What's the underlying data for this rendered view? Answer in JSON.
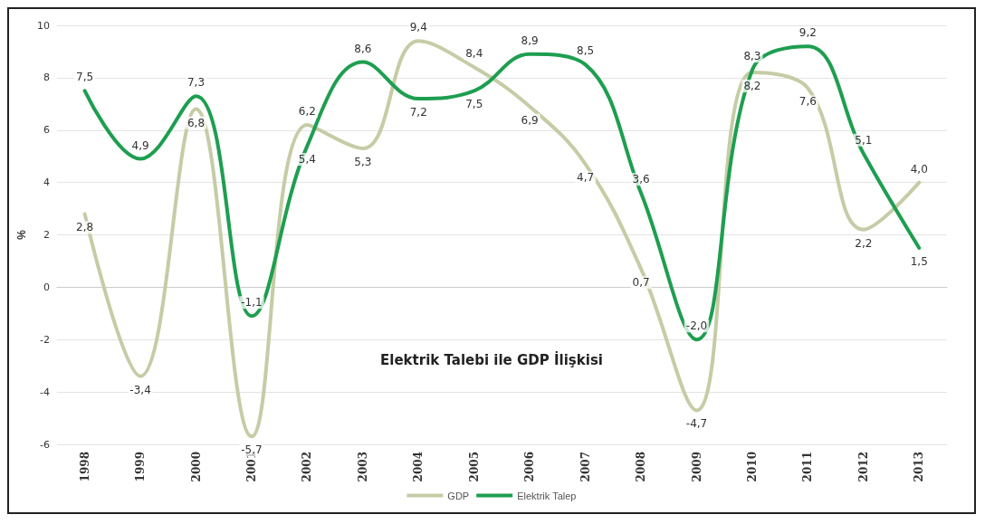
{
  "chart_data": {
    "type": "line",
    "title": "Elektrik Talebi ile GDP İlişkisi",
    "ylabel": "%",
    "categories": [
      "1998",
      "1999",
      "2000",
      "2001",
      "2002",
      "2003",
      "2004",
      "2005",
      "2006",
      "2007",
      "2008",
      "2009",
      "2010",
      "2011",
      "2012",
      "2013"
    ],
    "series": [
      {
        "name": "GDP",
        "color": "#c5cca6",
        "values": [
          2.8,
          -3.4,
          6.8,
          -5.7,
          6.2,
          5.3,
          9.4,
          8.4,
          6.9,
          4.7,
          0.7,
          -4.7,
          8.2,
          7.6,
          2.2,
          4.0
        ],
        "value_labels": [
          "2,8",
          "-3,4",
          "6,8",
          "-5,7",
          "6,2",
          "5,3",
          "9,4",
          "8,4",
          "6,9",
          "4,7",
          "0,7",
          "-4,7",
          "8,2",
          "7,6",
          "2,2",
          "4,0"
        ]
      },
      {
        "name": "Elektrik Talep",
        "color": "#1e9e50",
        "values": [
          7.5,
          4.9,
          7.3,
          -1.1,
          5.4,
          8.6,
          7.2,
          7.5,
          8.9,
          8.5,
          3.6,
          -2.0,
          8.3,
          9.2,
          5.1,
          1.5
        ],
        "value_labels": [
          "7,5",
          "4,9",
          "7,3",
          "-1,1",
          "5,4",
          "8,6",
          "7,2",
          "7,5",
          "8,9",
          "8,5",
          "3,6",
          "-2,0",
          "8,3",
          "9,2",
          "5,1",
          "1,5"
        ]
      }
    ],
    "ylim": [
      -6,
      10
    ],
    "yticks": [
      -6,
      -4,
      -2,
      0,
      2,
      4,
      6,
      8,
      10
    ],
    "grid": "y",
    "legend": "bottom",
    "marker": "none",
    "line_style": "solid"
  }
}
